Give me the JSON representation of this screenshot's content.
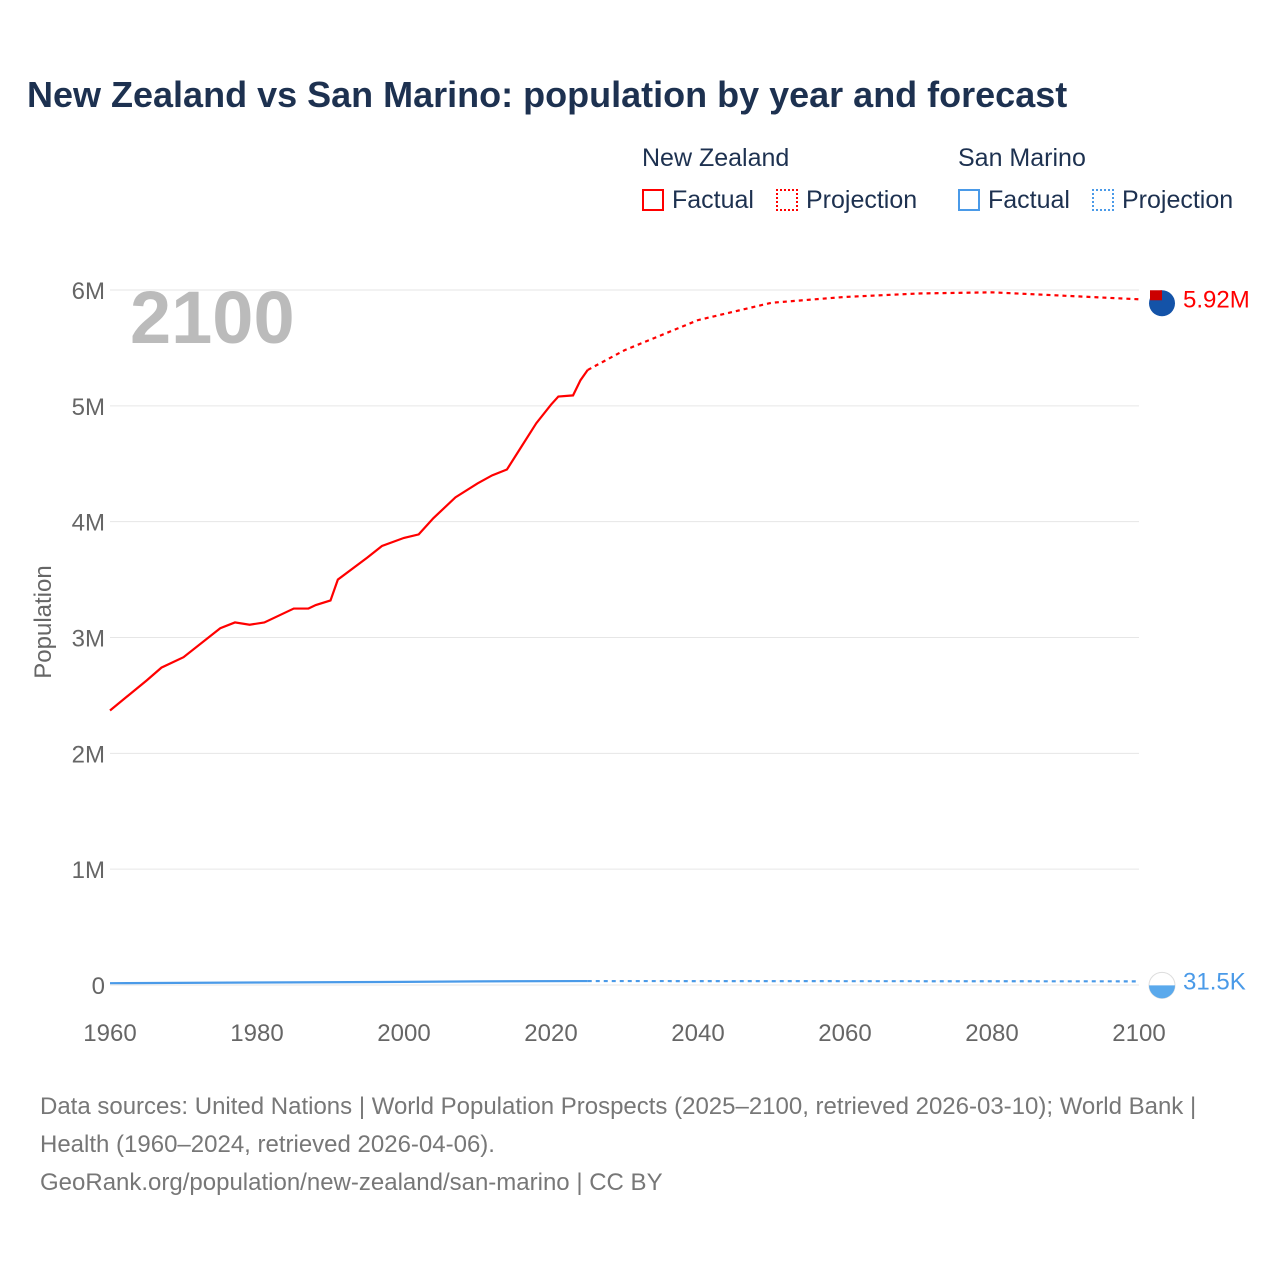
{
  "title": "New Zealand vs San Marino: population by year and forecast",
  "current_year": "2100",
  "legend": {
    "nz": "New Zealand",
    "sm": "San Marino",
    "factual": "Factual",
    "projection": "Projection"
  },
  "footer": {
    "line1": "Data sources: United Nations | World Population Prospects (2025–2100, retrieved 2026-03-10); World Bank | Health (1960–2024, retrieved 2026-04-06).",
    "line2": "GeoRank.org/population/new-zealand/san-marino | CC BY"
  },
  "colors": {
    "nz": "#ff0000",
    "sm": "#4a9ae8"
  },
  "chart_data": {
    "type": "line",
    "ylabel": "Population",
    "xlim": [
      1960,
      2100
    ],
    "ylim": [
      0,
      6000000
    ],
    "xticks": [
      "1960",
      "1980",
      "2000",
      "2020",
      "2040",
      "2060",
      "2080",
      "2100"
    ],
    "yticks": [
      {
        "v": 0,
        "l": "0"
      },
      {
        "v": 1000000,
        "l": "1M"
      },
      {
        "v": 2000000,
        "l": "2M"
      },
      {
        "v": 3000000,
        "l": "3M"
      },
      {
        "v": 4000000,
        "l": "4M"
      },
      {
        "v": 5000000,
        "l": "5M"
      },
      {
        "v": 6000000,
        "l": "6M"
      }
    ],
    "series": [
      {
        "name": "New Zealand",
        "end_label": "5.92M",
        "factual": [
          [
            1960,
            2370000
          ],
          [
            1965,
            2630000
          ],
          [
            1967,
            2740000
          ],
          [
            1970,
            2830000
          ],
          [
            1975,
            3080000
          ],
          [
            1977,
            3130000
          ],
          [
            1979,
            3110000
          ],
          [
            1981,
            3130000
          ],
          [
            1985,
            3250000
          ],
          [
            1987,
            3250000
          ],
          [
            1988,
            3280000
          ],
          [
            1990,
            3320000
          ],
          [
            1991,
            3500000
          ],
          [
            1995,
            3690000
          ],
          [
            1997,
            3790000
          ],
          [
            2000,
            3860000
          ],
          [
            2002,
            3890000
          ],
          [
            2004,
            4030000
          ],
          [
            2007,
            4210000
          ],
          [
            2010,
            4330000
          ],
          [
            2012,
            4400000
          ],
          [
            2014,
            4450000
          ],
          [
            2016,
            4650000
          ],
          [
            2018,
            4850000
          ],
          [
            2020,
            5010000
          ],
          [
            2021,
            5080000
          ],
          [
            2023,
            5090000
          ],
          [
            2024,
            5220000
          ],
          [
            2025,
            5310000
          ]
        ],
        "projection": [
          [
            2025,
            5310000
          ],
          [
            2030,
            5480000
          ],
          [
            2040,
            5740000
          ],
          [
            2050,
            5890000
          ],
          [
            2060,
            5940000
          ],
          [
            2070,
            5970000
          ],
          [
            2080,
            5980000
          ],
          [
            2090,
            5950000
          ],
          [
            2100,
            5920000
          ]
        ]
      },
      {
        "name": "San Marino",
        "end_label": "31.5K",
        "factual": [
          [
            1960,
            15500
          ],
          [
            1980,
            21500
          ],
          [
            2000,
            27000
          ],
          [
            2010,
            31500
          ],
          [
            2024,
            34000
          ],
          [
            2025,
            34000
          ]
        ],
        "projection": [
          [
            2025,
            34000
          ],
          [
            2050,
            33500
          ],
          [
            2075,
            32500
          ],
          [
            2100,
            31500
          ]
        ]
      }
    ]
  }
}
